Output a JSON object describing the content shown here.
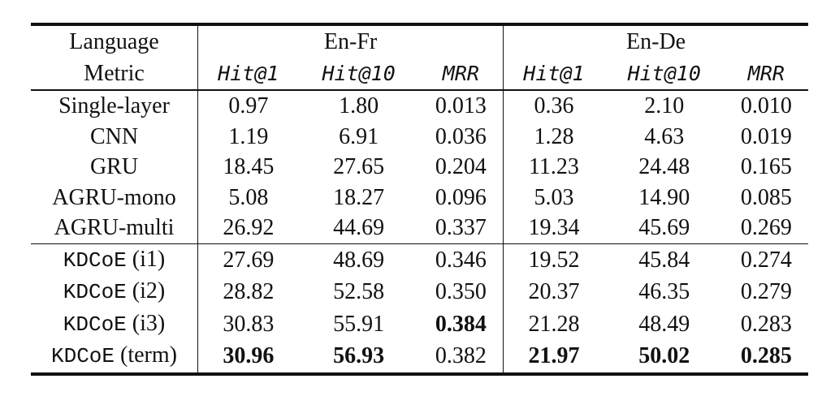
{
  "table": {
    "header": {
      "row_label": "Language",
      "groups": [
        "En-Fr",
        "En-De"
      ],
      "metric_label": "Metric",
      "metrics": [
        "Hit@1",
        "Hit@10",
        "MRR",
        "Hit@1",
        "Hit@10",
        "MRR"
      ]
    },
    "groups": [
      {
        "rows": [
          {
            "label": "Single-layer",
            "cells": [
              "0.97",
              "1.80",
              "0.013",
              "0.36",
              "2.10",
              "0.010"
            ],
            "bold": []
          },
          {
            "label": "CNN",
            "cells": [
              "1.19",
              "6.91",
              "0.036",
              "1.28",
              "4.63",
              "0.019"
            ],
            "bold": []
          },
          {
            "label": "GRU",
            "cells": [
              "18.45",
              "27.65",
              "0.204",
              "11.23",
              "24.48",
              "0.165"
            ],
            "bold": []
          },
          {
            "label": "AGRU-mono",
            "cells": [
              "5.08",
              "18.27",
              "0.096",
              "5.03",
              "14.90",
              "0.085"
            ],
            "bold": []
          },
          {
            "label": "AGRU-multi",
            "cells": [
              "26.92",
              "44.69",
              "0.337",
              "19.34",
              "45.69",
              "0.269"
            ],
            "bold": []
          }
        ]
      },
      {
        "rows": [
          {
            "label_code": "KDCoE",
            "label_rest": "(i1)",
            "cells": [
              "27.69",
              "48.69",
              "0.346",
              "19.52",
              "45.84",
              "0.274"
            ],
            "bold": []
          },
          {
            "label_code": "KDCoE",
            "label_rest": "(i2)",
            "cells": [
              "28.82",
              "52.58",
              "0.350",
              "20.37",
              "46.35",
              "0.279"
            ],
            "bold": []
          },
          {
            "label_code": "KDCoE",
            "label_rest": "(i3)",
            "cells": [
              "30.83",
              "55.91",
              "0.384",
              "21.28",
              "48.49",
              "0.283"
            ],
            "bold": [
              2
            ]
          },
          {
            "label_code": "KDCoE",
            "label_rest": "(term)",
            "cells": [
              "30.96",
              "56.93",
              "0.382",
              "21.97",
              "50.02",
              "0.285"
            ],
            "bold": [
              0,
              1,
              3,
              4,
              5
            ]
          }
        ]
      }
    ]
  }
}
